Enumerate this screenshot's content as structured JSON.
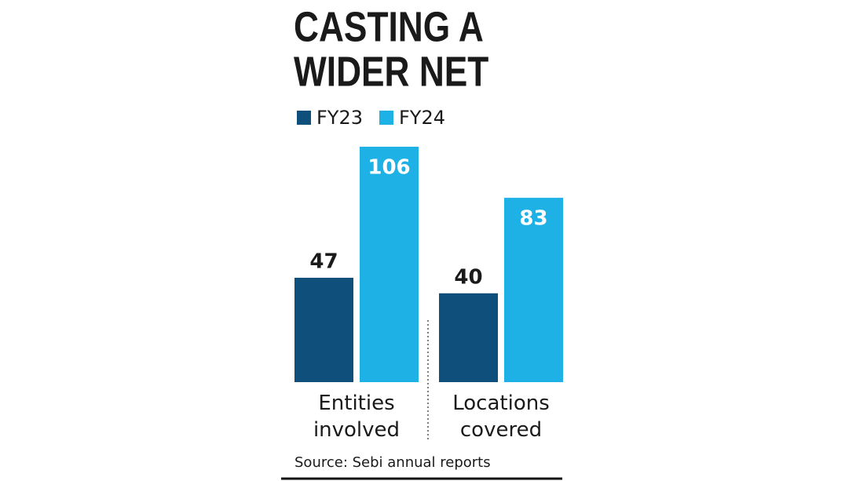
{
  "chart_data": {
    "type": "bar",
    "title_lines": [
      "CASTING A",
      "WIDER NET"
    ],
    "categories": [
      "Entities involved",
      "Locations covered"
    ],
    "series": [
      {
        "name": "FY23",
        "color": "#0e4f7b",
        "values": [
          47,
          40
        ]
      },
      {
        "name": "FY24",
        "color": "#1db1e6",
        "values": [
          106,
          83
        ]
      }
    ],
    "source": "Source: Sebi annual reports"
  }
}
